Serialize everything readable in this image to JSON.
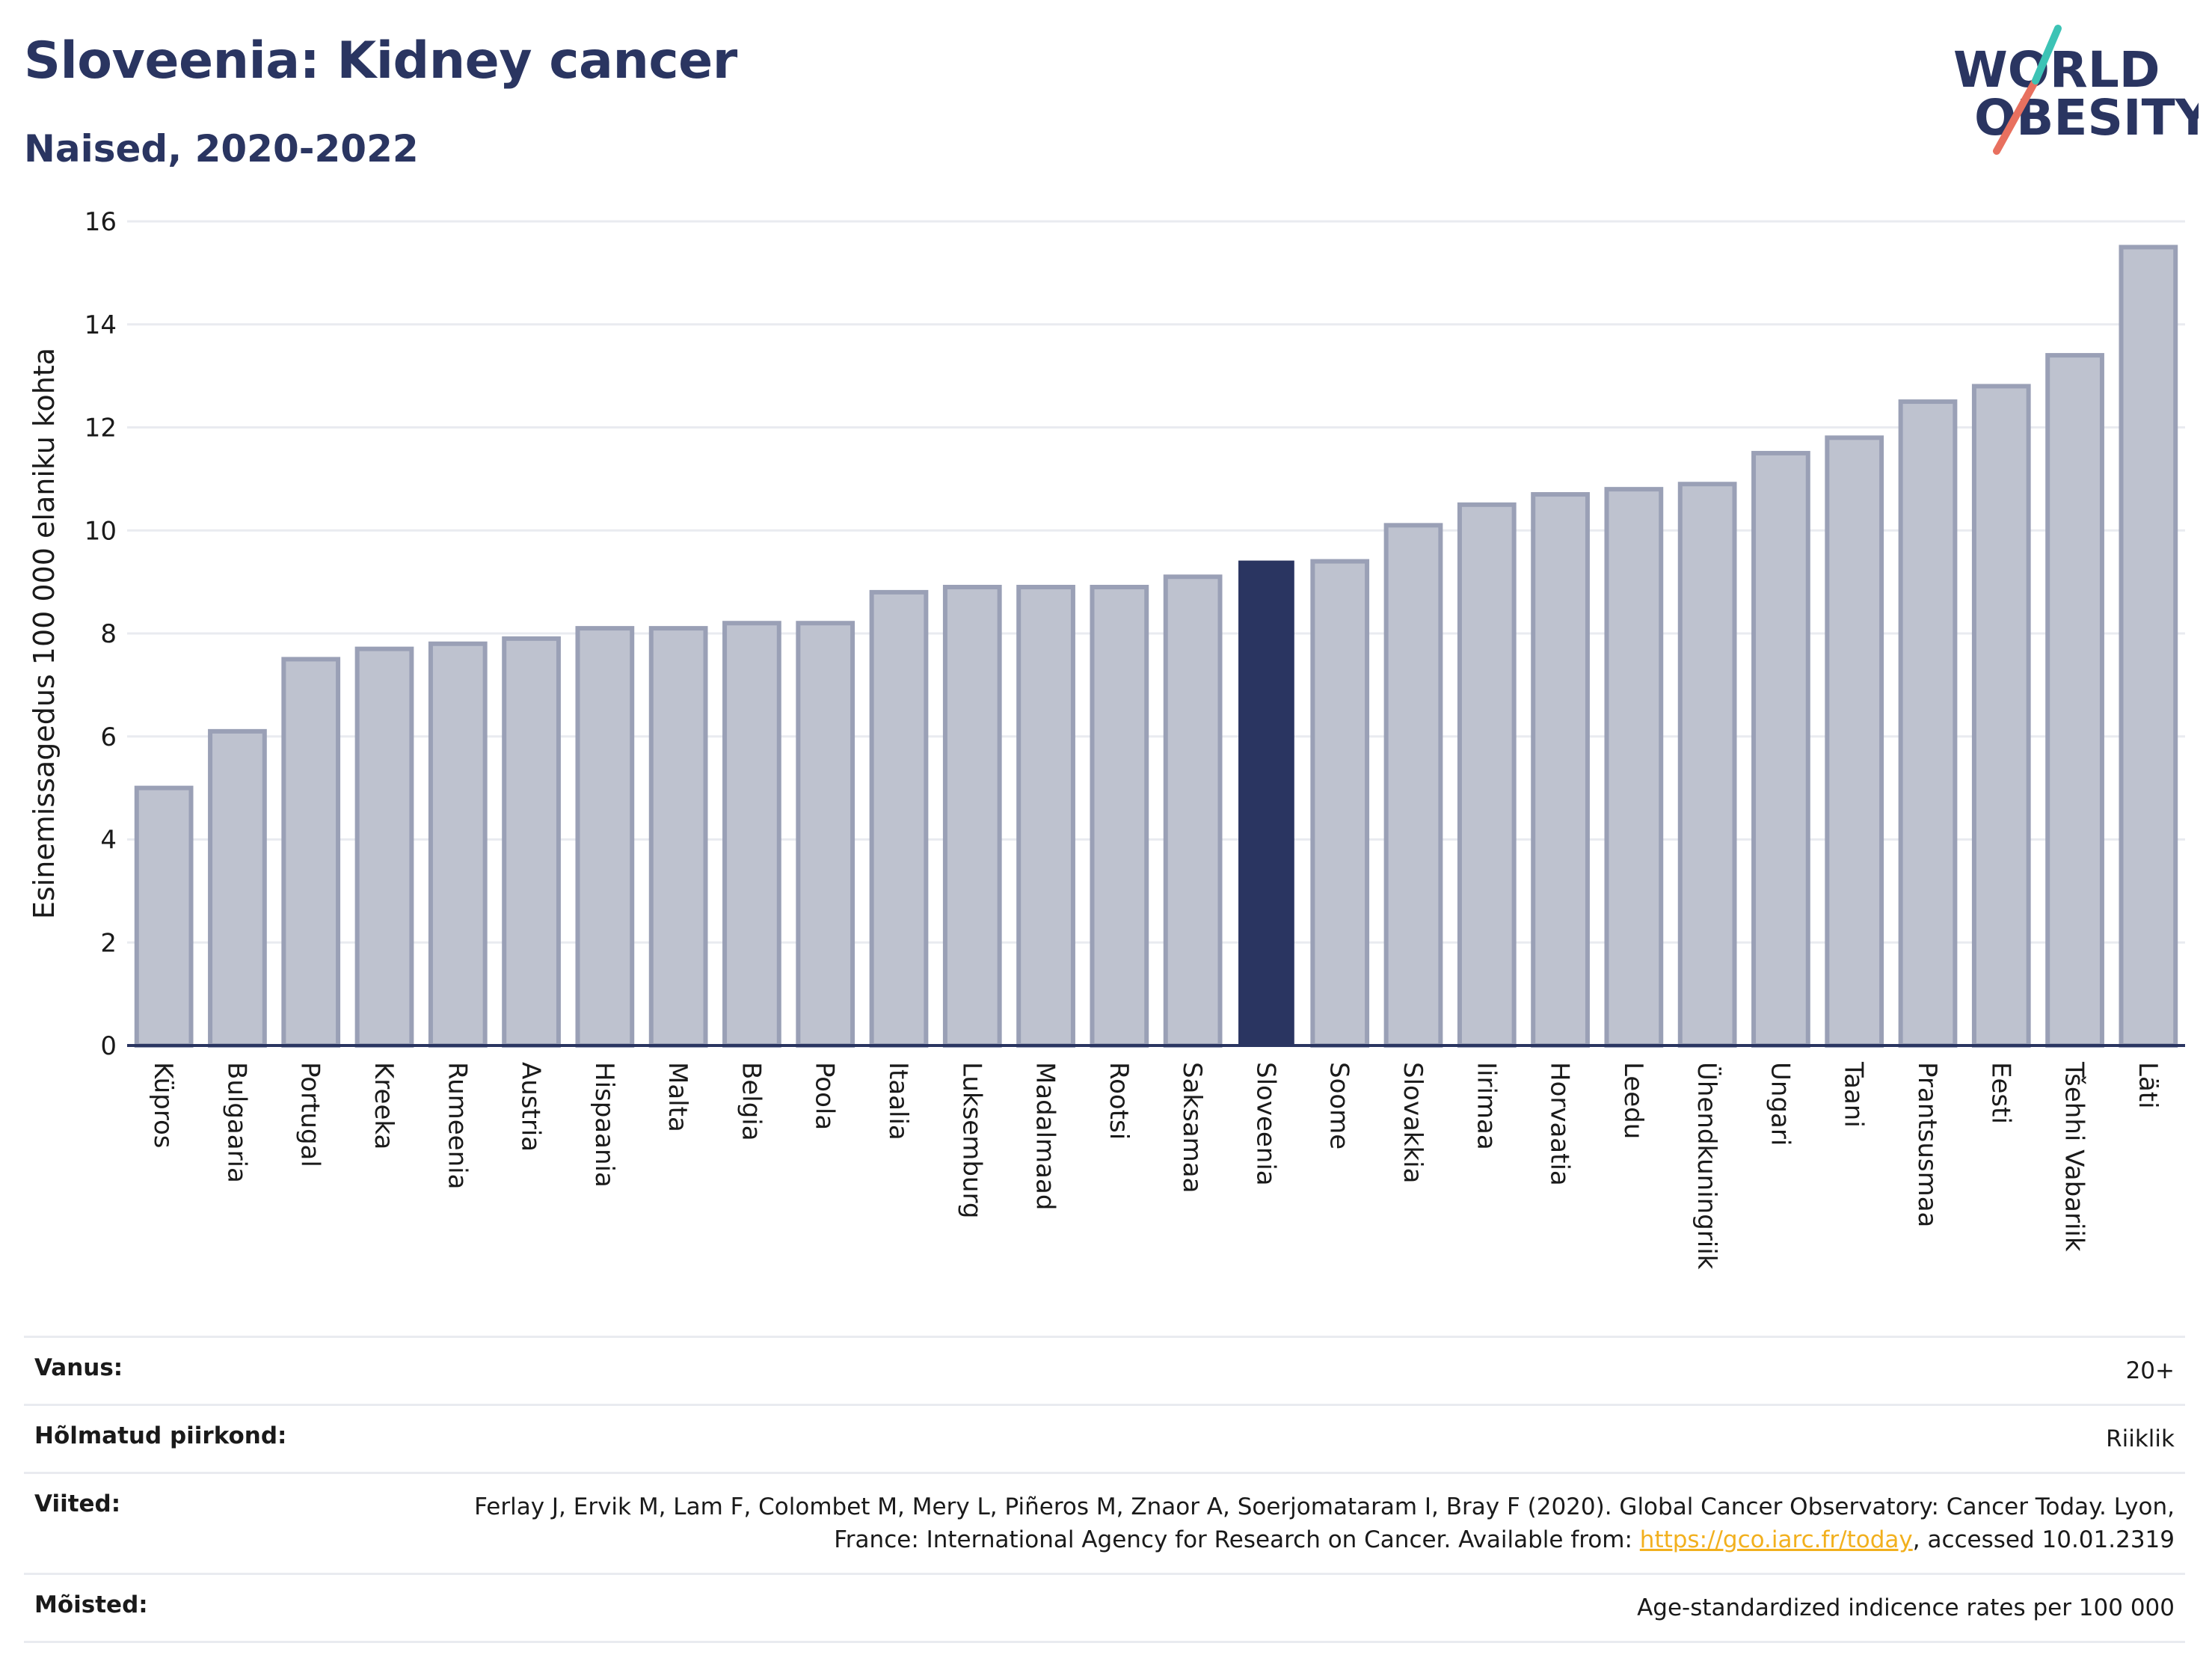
{
  "header": {
    "title": "Sloveenia: Kidney cancer",
    "subtitle": "Naised, 2020-2022"
  },
  "logo": {
    "line1": "WORLD",
    "line2": "OBESITY",
    "text_color": "#2a3561",
    "slash_colors": [
      "#e8705f",
      "#3cc3b5"
    ]
  },
  "colors": {
    "bar": "#bec2cf",
    "bar_border": "#9aa0b6",
    "highlight": "#2a3561",
    "grid": "#e9ebf0",
    "axis": "#2a3561"
  },
  "chart_data": {
    "type": "bar",
    "title": "Sloveenia: Kidney cancer",
    "subtitle": "Naised, 2020-2022",
    "ylabel": "Esinemissagedus 100 000 elaniku kohta",
    "xlabel": "",
    "ylim": [
      0,
      16
    ],
    "yticks": [
      0,
      2,
      4,
      6,
      8,
      10,
      12,
      14,
      16
    ],
    "grid": true,
    "highlight": "Sloveenia",
    "categories": [
      "Küpros",
      "Bulgaaria",
      "Portugal",
      "Kreeka",
      "Rumeenia",
      "Austria",
      "Hispaania",
      "Malta",
      "Belgia",
      "Poola",
      "Itaalia",
      "Luksemburg",
      "Madalmaad",
      "Rootsi",
      "Saksamaa",
      "Sloveenia",
      "Soome",
      "Slovakkia",
      "Iirimaa",
      "Horvaatia",
      "Leedu",
      "Ühendkuningriik",
      "Ungari",
      "Taani",
      "Prantsusmaa",
      "Eesti",
      "Tšehhi Vabariik",
      "Läti"
    ],
    "values": [
      5.0,
      6.1,
      7.5,
      7.7,
      7.8,
      7.9,
      8.1,
      8.1,
      8.2,
      8.2,
      8.8,
      8.9,
      8.9,
      8.9,
      9.1,
      9.4,
      9.4,
      10.1,
      10.5,
      10.7,
      10.8,
      10.9,
      11.5,
      11.8,
      12.5,
      12.8,
      13.4,
      15.5
    ]
  },
  "meta": [
    {
      "key": "Vanus:",
      "value": "20+"
    },
    {
      "key": "Hõlmatud piirkond:",
      "value": "Riiklik"
    },
    {
      "key": "Viited:",
      "value_pre": "Ferlay J, Ervik M, Lam F, Colombet M, Mery L, Piñeros M, Znaor A, Soerjomataram I, Bray F (2020). Global Cancer Observatory: Cancer Today. Lyon, France: International Agency for Research on Cancer. Available from: ",
      "link": "https://gco.iarc.fr/today",
      "value_post": ", accessed 10.01.2319"
    },
    {
      "key": "Mõisted:",
      "value": "Age-standardized indicence rates per 100 000"
    }
  ]
}
